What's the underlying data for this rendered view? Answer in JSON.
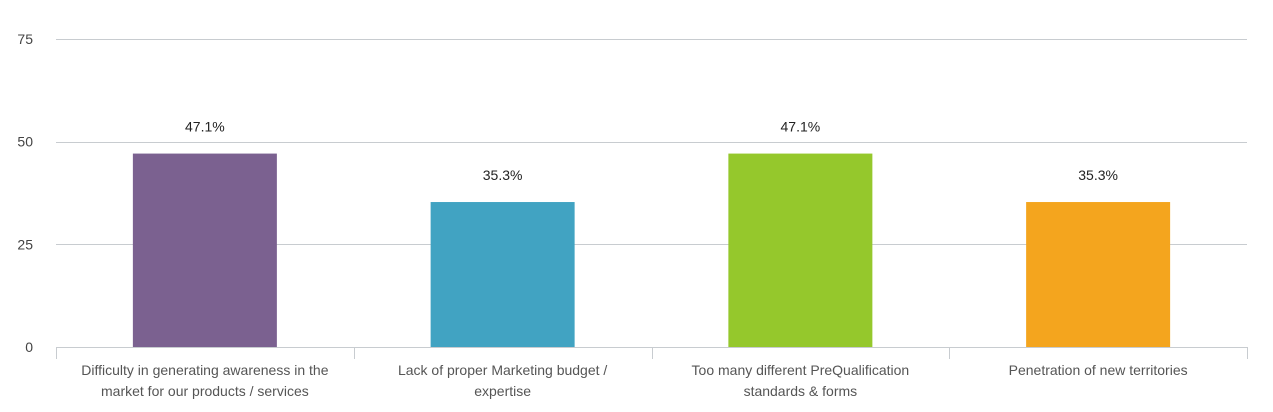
{
  "chart_data": {
    "type": "bar",
    "categories": [
      [
        "Difficulty in generating awareness in the",
        "market for our products / services"
      ],
      [
        "Lack of proper Marketing budget /",
        "expertise"
      ],
      [
        "Too many different PreQualification",
        "standards & forms"
      ],
      [
        "Penetration of new territories"
      ]
    ],
    "values": [
      47.1,
      35.3,
      47.1,
      35.3
    ],
    "value_labels": [
      "47.1%",
      "35.3%",
      "47.1%",
      "35.3%"
    ],
    "colors": [
      "#7b6190",
      "#41a3c2",
      "#95c82c",
      "#f4a51e"
    ],
    "ylim": [
      0,
      75
    ],
    "yticks": [
      0,
      25,
      50,
      75
    ],
    "ytick_labels": [
      "0",
      "25",
      "50",
      "75"
    ],
    "grid": true,
    "legend": false,
    "title": "",
    "xlabel": "",
    "ylabel": ""
  }
}
